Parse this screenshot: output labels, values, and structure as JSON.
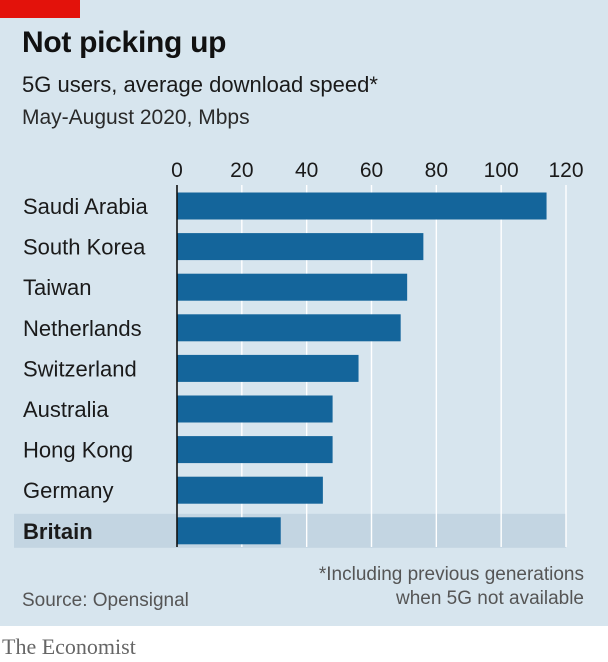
{
  "header": {
    "title": "Not picking up",
    "subtitle": "5G users, average download speed*",
    "units": "May-August 2020, Mbps"
  },
  "footer": {
    "footnote": "*Including previous generations when 5G not available",
    "source": "Source: Opensignal",
    "brand": "The Economist"
  },
  "colors": {
    "bar": "#14659b",
    "highlight_band": "#c3d5e2",
    "gridline": "#ffffff",
    "accent_red": "#e3120b"
  },
  "chart_data": {
    "type": "bar",
    "orientation": "horizontal",
    "categories": [
      "Saudi Arabia",
      "South Korea",
      "Taiwan",
      "Netherlands",
      "Switzerland",
      "Australia",
      "Hong Kong",
      "Germany",
      "Britain"
    ],
    "values": [
      114,
      76,
      71,
      69,
      56,
      48,
      48,
      45,
      32
    ],
    "highlighted_category": "Britain",
    "xlim": [
      0,
      120
    ],
    "xticks": [
      0,
      20,
      40,
      60,
      80,
      100,
      120
    ],
    "xtick_position": "top",
    "grid": true
  }
}
